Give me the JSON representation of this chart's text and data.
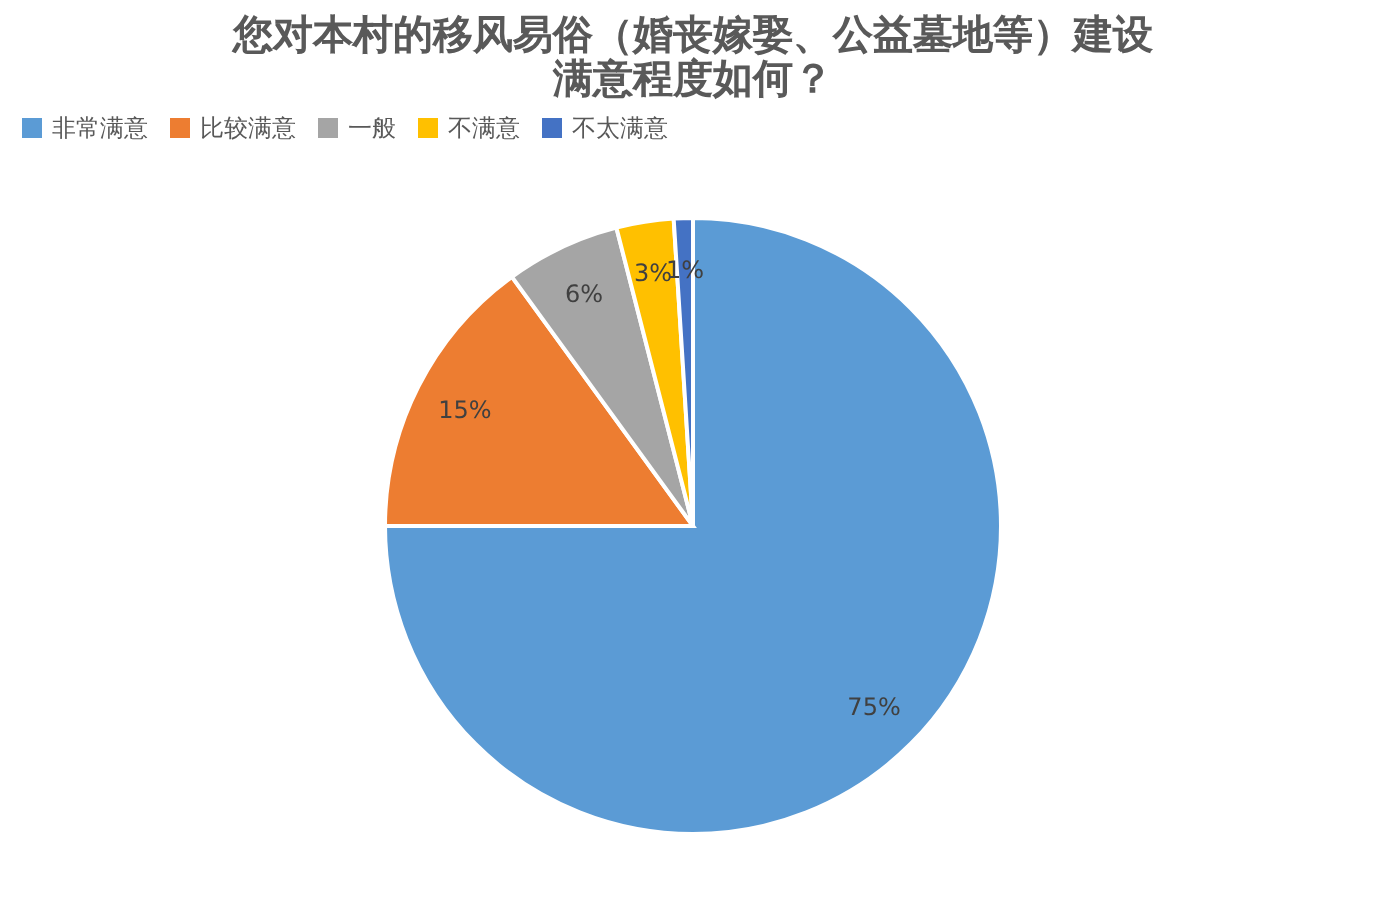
{
  "chart_data": {
    "type": "pie",
    "title": [
      "您对本村的移风易俗（婚丧嫁娶、公益墓地等）建设",
      "满意程度如何？"
    ],
    "categories": [
      "非常满意",
      "比较满意",
      "一般",
      "不满意",
      "不太满意"
    ],
    "values": [
      75,
      15,
      6,
      3,
      1
    ],
    "colors": [
      "#5b9bd5",
      "#ed7d31",
      "#a5a5a5",
      "#ffc000",
      "#4472c4"
    ],
    "value_labels": [
      "75%",
      "15%",
      "6%",
      "3%",
      "1%"
    ],
    "legend": "top"
  }
}
